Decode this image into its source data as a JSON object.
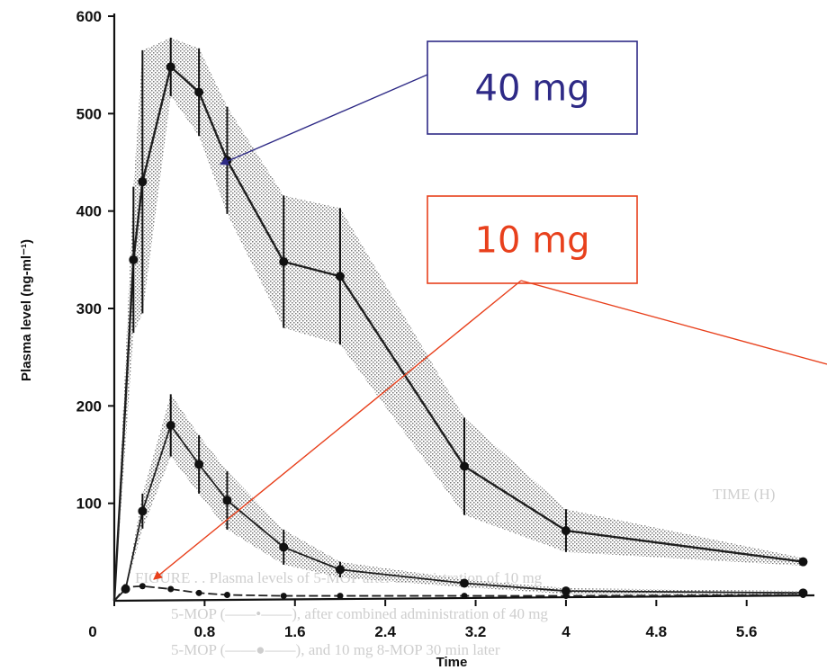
{
  "chart_data": {
    "type": "line",
    "xlabel": "Time",
    "ylabel": "Plasma level (ng-ml⁻¹)",
    "x_ticks": [
      "0",
      "0.8",
      "1.6",
      "2.4",
      "3.2",
      "4",
      "4.8",
      "5.6"
    ],
    "y_ticks": [
      "100",
      "200",
      "300",
      "400",
      "500",
      "600"
    ],
    "xlim": [
      0,
      6.2
    ],
    "ylim": [
      0,
      600
    ],
    "grid": false,
    "error_band": true,
    "series": [
      {
        "name": "40 mg",
        "color": "#1f1f1f",
        "x": [
          0.0,
          0.17,
          0.25,
          0.5,
          0.75,
          1.0,
          1.5,
          2.0,
          3.1,
          4.0,
          6.1
        ],
        "y": [
          0,
          350,
          430,
          548,
          522,
          452,
          348,
          333,
          138,
          72,
          40
        ],
        "err": [
          0,
          75,
          135,
          30,
          45,
          55,
          68,
          70,
          50,
          22,
          4
        ]
      },
      {
        "name": "10 mg",
        "color": "#1f1f1f",
        "x": [
          0.0,
          0.1,
          0.25,
          0.5,
          0.75,
          1.0,
          1.5,
          2.0,
          3.1,
          4.0,
          6.1
        ],
        "y": [
          0,
          12,
          92,
          180,
          140,
          103,
          55,
          32,
          18,
          10,
          8
        ],
        "err": [
          0,
          0,
          18,
          32,
          30,
          30,
          18,
          8,
          4,
          3,
          2
        ]
      },
      {
        "name": "",
        "color": "#1f1f1f",
        "x": [
          0.0,
          0.1,
          0.25,
          0.5,
          0.75,
          1.0,
          1.5,
          2.0,
          3.1,
          4.0,
          6.1
        ],
        "y": [
          0,
          14,
          15,
          12,
          8,
          6,
          5,
          5,
          5,
          5,
          6
        ],
        "err": [
          0,
          0,
          0,
          0,
          0,
          0,
          0,
          0,
          0,
          0,
          0
        ]
      }
    ],
    "annotations": [
      {
        "label": "40 mg",
        "color": "#2e2a86",
        "target_x": 0.94,
        "target_y": 448
      },
      {
        "label": "10 mg",
        "color": "#e8401c",
        "target_x": 0.35,
        "target_y": 22
      }
    ]
  },
  "background_text": {
    "line1": "FIGURE . . Plasma levels of 5-MOP after administration of 10 mg",
    "line2": "5-MOP (——•——), after combined administration of 40 mg",
    "line3": "5-MOP (——●——), and 10 mg 8-MOP 30 min later",
    "ghost_axis": "TIME (H)"
  }
}
